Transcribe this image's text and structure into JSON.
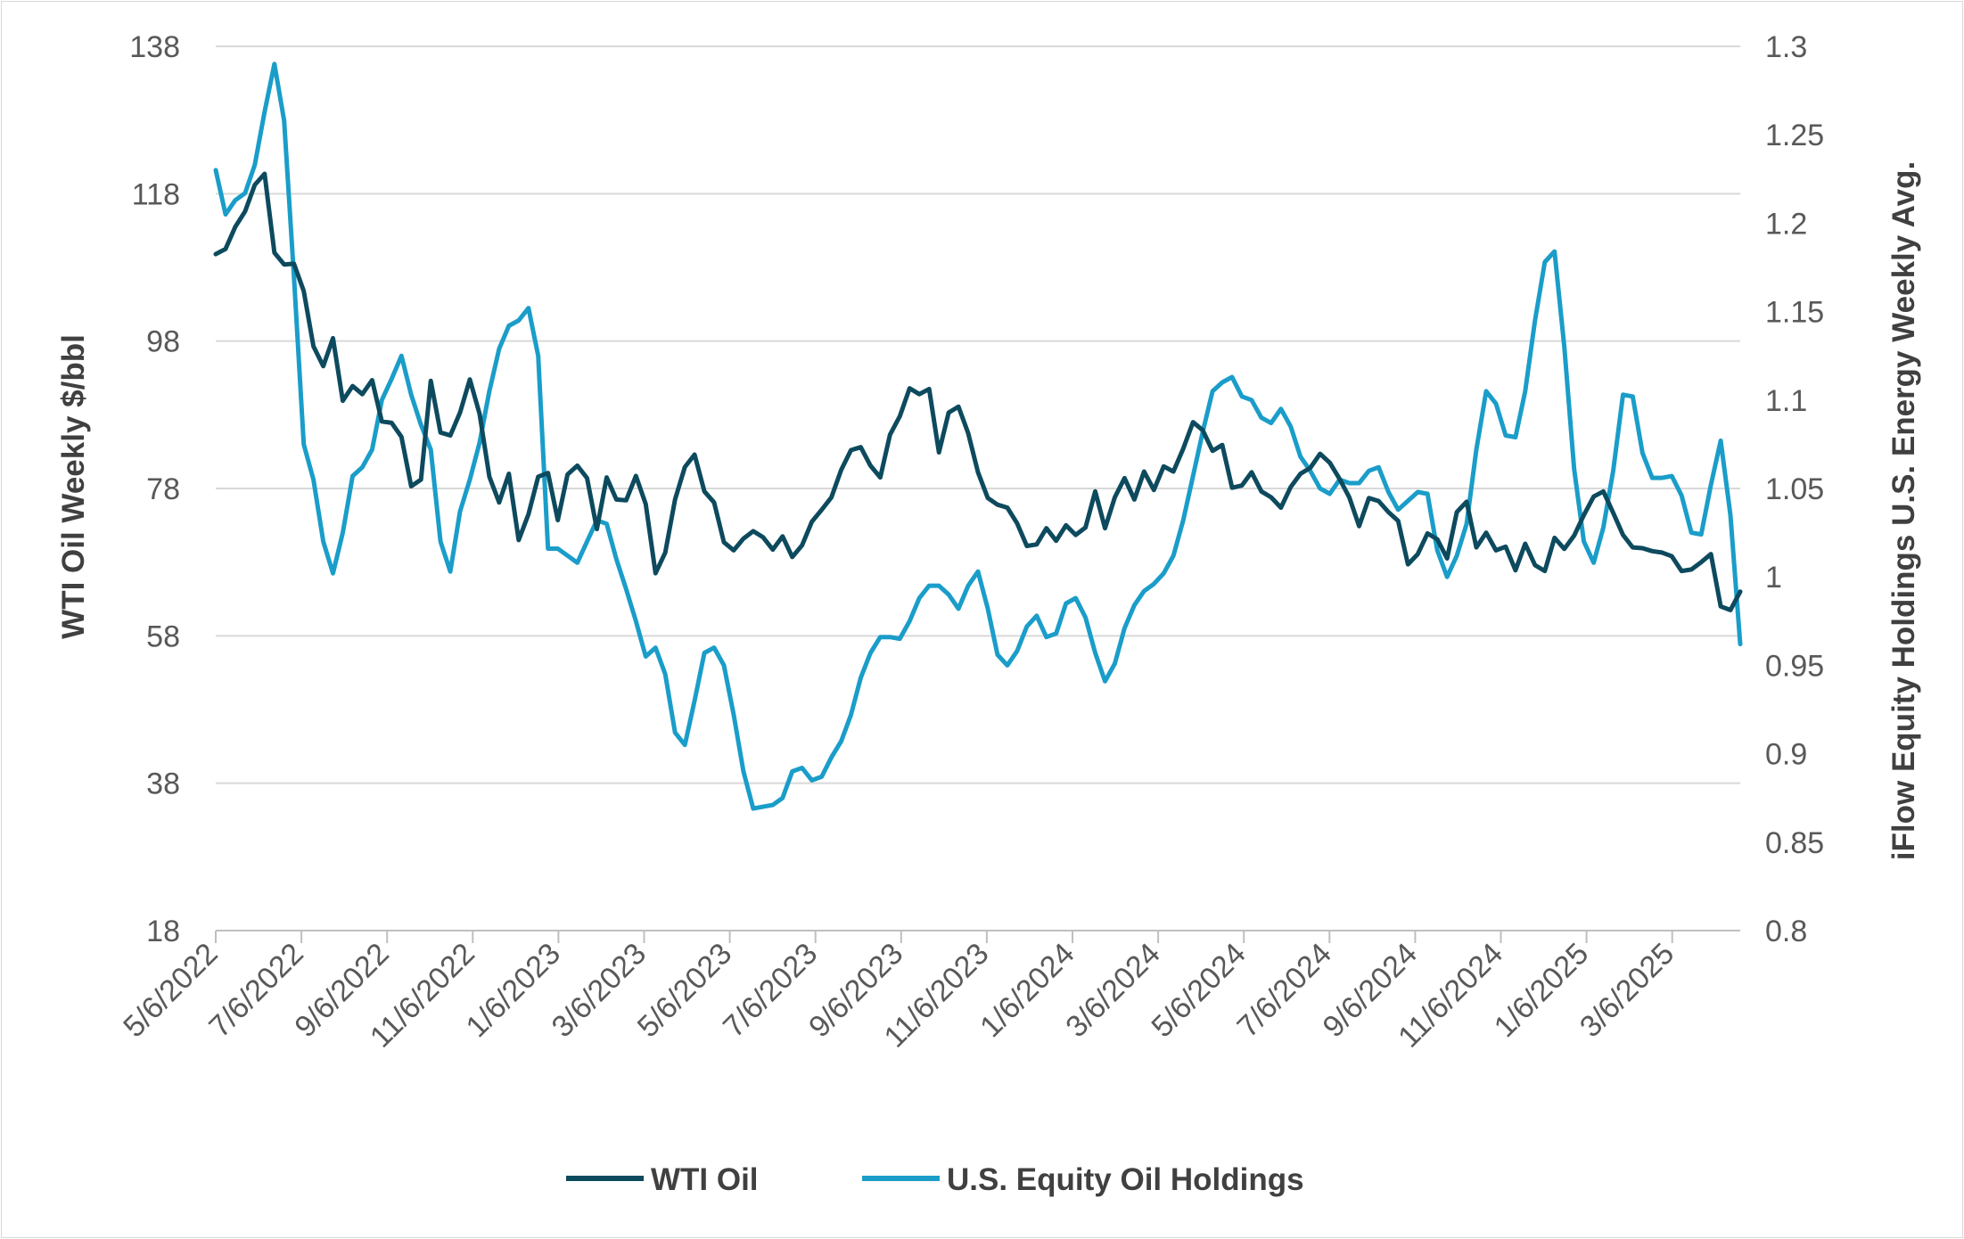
{
  "chart_data": {
    "type": "line",
    "xlabel": "",
    "ylabel": "WTI Oil Weekly $/bbl",
    "y2label": "iFlow Equity Holdings U.S. Energy Weekly Avg.",
    "ylim": [
      18,
      138
    ],
    "y2lim": [
      0.8,
      1.3
    ],
    "yticks": [
      "18",
      "38",
      "58",
      "78",
      "98",
      "118",
      "138"
    ],
    "y2ticks": [
      "0.8",
      "0.85",
      "0.9",
      "0.95",
      "1",
      "1.05",
      "1.1",
      "1.15",
      "1.2",
      "1.25",
      "1.3"
    ],
    "xticks": [
      "5/6/2022",
      "7/6/2022",
      "9/6/2022",
      "11/6/2022",
      "1/6/2023",
      "3/6/2023",
      "5/6/2023",
      "7/6/2023",
      "9/6/2023",
      "11/6/2023",
      "1/6/2024",
      "3/6/2024",
      "5/6/2024",
      "7/6/2024",
      "9/6/2024",
      "11/6/2024",
      "1/6/2025",
      "3/6/2025"
    ],
    "grid": "horizontal",
    "legend_position": "bottom",
    "colors": {
      "wti": "#0d4a5e",
      "equity": "#1a9dc9",
      "grid": "#d9d9d9",
      "axis": "#bfbfbf"
    },
    "series": [
      {
        "name": "WTI Oil",
        "axis": "left",
        "values": [
          109.8,
          110.5,
          113.5,
          115.6,
          119.2,
          120.7,
          110,
          108.4,
          108.5,
          104.8,
          97.3,
          94.6,
          98.4,
          89.9,
          91.9,
          90.8,
          92.7,
          87.1,
          86.9,
          85,
          78.3,
          79.2,
          92.6,
          85.6,
          85.2,
          88.3,
          92.8,
          88.1,
          79.6,
          76.1,
          80,
          71,
          74.5,
          79.6,
          80.1,
          73.7,
          79.9,
          81.1,
          79.4,
          72.5,
          79.5,
          76.5,
          76.4,
          79.7,
          75.9,
          66.5,
          69.3,
          76.5,
          80.9,
          82.6,
          77.6,
          76.1,
          70.7,
          69.6,
          71.2,
          72.2,
          71.4,
          69.7,
          71.5,
          68.7,
          70.3,
          73.5,
          75.1,
          76.8,
          80.5,
          83.2,
          83.6,
          81.1,
          79.5,
          85.3,
          87.8,
          91.6,
          90.8,
          91.5,
          82.9,
          88.3,
          89.1,
          85.5,
          80.2,
          76.7,
          75.8,
          75.4,
          73.3,
          70.2,
          70.4,
          72.6,
          70.9,
          73,
          71.7,
          72.7,
          77.6,
          72.6,
          76.8,
          79.4,
          76.5,
          80.3,
          77.8,
          81,
          80.3,
          83.4,
          87,
          85.9,
          83.1,
          83.9,
          78.1,
          78.4,
          80.2,
          77.6,
          76.8,
          75.4,
          78.2,
          80,
          80.8,
          82.7,
          81.5,
          79.3,
          76.8,
          72.9,
          76.7,
          76.3,
          74.8,
          73.6,
          67.7,
          69.1,
          71.9,
          71.1,
          68.5,
          74.8,
          76.2,
          70,
          72,
          69.6,
          70.1,
          66.9,
          70.5,
          67.6,
          66.8,
          71.3,
          69.8,
          71.6,
          74.4,
          76.9,
          77.6,
          74.7,
          71.7,
          70,
          69.9,
          69.5,
          69.3,
          68.8,
          66.8,
          67,
          68,
          69.1,
          62,
          61.5,
          64
        ]
      },
      {
        "name": "U.S. Equity Oil Holdings",
        "axis": "right",
        "values": [
          1.23,
          1.205,
          1.213,
          1.217,
          1.233,
          1.263,
          1.29,
          1.258,
          1.17,
          1.075,
          1.055,
          1.02,
          1.002,
          1.025,
          1.057,
          1.062,
          1.072,
          1.1,
          1.112,
          1.125,
          1.103,
          1.086,
          1.072,
          1.02,
          1.003,
          1.037,
          1.055,
          1.076,
          1.105,
          1.129,
          1.142,
          1.145,
          1.152,
          1.125,
          1.016,
          1.016,
          1.012,
          1.008,
          1.02,
          1.032,
          1.03,
          1.01,
          0.993,
          0.975,
          0.955,
          0.96,
          0.945,
          0.912,
          0.905,
          0.93,
          0.957,
          0.96,
          0.95,
          0.922,
          0.89,
          0.869,
          0.87,
          0.871,
          0.875,
          0.89,
          0.892,
          0.885,
          0.887,
          0.898,
          0.907,
          0.922,
          0.943,
          0.957,
          0.966,
          0.966,
          0.965,
          0.975,
          0.988,
          0.995,
          0.995,
          0.99,
          0.982,
          0.995,
          1.003,
          0.982,
          0.956,
          0.95,
          0.958,
          0.972,
          0.978,
          0.966,
          0.968,
          0.985,
          0.988,
          0.977,
          0.957,
          0.941,
          0.951,
          0.971,
          0.984,
          0.992,
          0.996,
          1.002,
          1.012,
          1.032,
          1.057,
          1.082,
          1.105,
          1.11,
          1.113,
          1.102,
          1.1,
          1.09,
          1.087,
          1.095,
          1.085,
          1.068,
          1.06,
          1.05,
          1.047,
          1.055,
          1.053,
          1.053,
          1.06,
          1.062,
          1.048,
          1.038,
          1.043,
          1.048,
          1.047,
          1.015,
          1,
          1.012,
          1.03,
          1.072,
          1.105,
          1.098,
          1.08,
          1.079,
          1.105,
          1.145,
          1.178,
          1.184,
          1.13,
          1.061,
          1.02,
          1.008,
          1.028,
          1.06,
          1.103,
          1.102,
          1.07,
          1.056,
          1.056,
          1.057,
          1.046,
          1.025,
          1.024,
          1.052,
          1.077,
          1.035,
          0.962
        ]
      }
    ]
  }
}
